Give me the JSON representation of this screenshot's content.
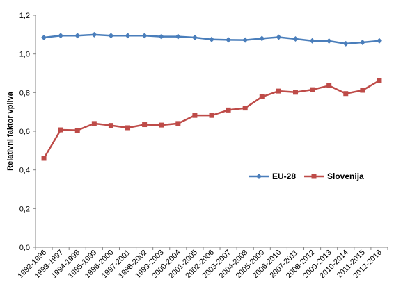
{
  "chart_data": {
    "type": "line",
    "title": "",
    "xlabel": "",
    "ylabel": "Relativni faktor vpliva",
    "ylim": [
      0,
      1.2
    ],
    "yticks": [
      "0,0",
      "0,2",
      "0,4",
      "0,6",
      "0,8",
      "1,0",
      "1,2"
    ],
    "grid": false,
    "legend_position": "right-middle",
    "categories": [
      "1992-1996",
      "1993-1997",
      "1994-1998",
      "1995-1999",
      "1996-2000",
      "1997-2001",
      "1998-2002",
      "1999-2003",
      "2000-2004",
      "2001-2005",
      "2002-2006",
      "2003-2007",
      "2004-2008",
      "2005-2009",
      "2006-2010",
      "2007-2011",
      "2008-2012",
      "2009-2013",
      "2010-2014",
      "2011-2015",
      "2012-2016"
    ],
    "series": [
      {
        "name": "EU-28",
        "color": "#4a7ebb",
        "marker": "diamond",
        "values": [
          1.085,
          1.095,
          1.095,
          1.1,
          1.095,
          1.095,
          1.095,
          1.09,
          1.09,
          1.085,
          1.075,
          1.073,
          1.072,
          1.08,
          1.087,
          1.078,
          1.068,
          1.067,
          1.053,
          1.06,
          1.068
        ]
      },
      {
        "name": "Slovenija",
        "color": "#be4b48",
        "marker": "square",
        "values": [
          0.46,
          0.607,
          0.605,
          0.64,
          0.63,
          0.618,
          0.634,
          0.632,
          0.64,
          0.682,
          0.682,
          0.71,
          0.72,
          0.778,
          0.808,
          0.802,
          0.815,
          0.836,
          0.795,
          0.812,
          0.862
        ]
      }
    ]
  }
}
